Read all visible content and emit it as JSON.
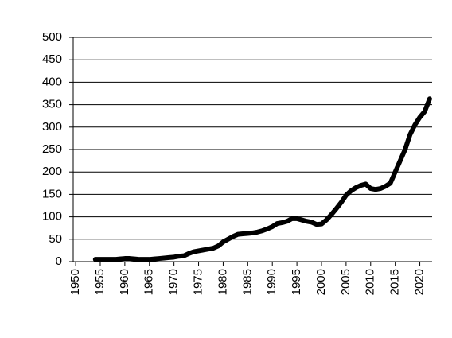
{
  "chart_data": {
    "type": "line",
    "x": [
      1954,
      1955,
      1956,
      1957,
      1958,
      1959,
      1960,
      1961,
      1962,
      1963,
      1964,
      1965,
      1966,
      1967,
      1968,
      1969,
      1970,
      1971,
      1972,
      1973,
      1974,
      1975,
      1976,
      1977,
      1978,
      1979,
      1980,
      1981,
      1982,
      1983,
      1984,
      1985,
      1986,
      1987,
      1988,
      1989,
      1990,
      1991,
      1992,
      1993,
      1994,
      1995,
      1996,
      1997,
      1998,
      1999,
      2000,
      2001,
      2002,
      2003,
      2004,
      2005,
      2006,
      2007,
      2008,
      2009,
      2010,
      2011,
      2012,
      2013,
      2014,
      2015,
      2016,
      2017,
      2018,
      2019,
      2020,
      2021,
      2022
    ],
    "series": [
      {
        "color": "#000000",
        "values": [
          5,
          5,
          5,
          5,
          5,
          6,
          7,
          7,
          6,
          5,
          5,
          5,
          6,
          7,
          8,
          9,
          10,
          12,
          13,
          18,
          22,
          24,
          26,
          28,
          30,
          35,
          44,
          50,
          56,
          61,
          62,
          63,
          64,
          66,
          69,
          73,
          78,
          85,
          87,
          90,
          96,
          96,
          93,
          90,
          88,
          83,
          84,
          93,
          105,
          118,
          132,
          148,
          158,
          165,
          170,
          173,
          163,
          161,
          163,
          168,
          175,
          200,
          225,
          250,
          283,
          305,
          322,
          335,
          363
        ]
      }
    ],
    "xlim": [
      1949.5,
      2022.5
    ],
    "xticks": [
      1950,
      1955,
      1960,
      1965,
      1970,
      1975,
      1980,
      1985,
      1990,
      1995,
      2000,
      2005,
      2010,
      2015,
      2020
    ],
    "ylim": [
      0,
      500
    ],
    "yticks": [
      0,
      50,
      100,
      150,
      200,
      250,
      300,
      350,
      400,
      450,
      500
    ],
    "grid": true
  }
}
